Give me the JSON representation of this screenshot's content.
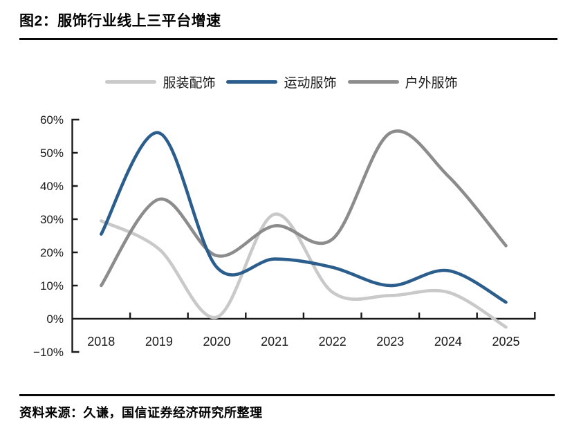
{
  "header": {
    "title": "图2：服饰行业线上三平台增速"
  },
  "footer": {
    "source": "资料来源：久谦，国信证券经济研究所整理"
  },
  "chart_data": {
    "type": "line",
    "title": "服饰行业线上三平台增速",
    "categories": [
      "2018",
      "2019",
      "2020",
      "2021",
      "2022",
      "2023",
      "2024",
      "2025"
    ],
    "series": [
      {
        "name": "服装配饰",
        "color": "#C9C9C9",
        "values": [
          29.5,
          21,
          0.5,
          31.5,
          8,
          7,
          8,
          -2.5
        ]
      },
      {
        "name": "运动服饰",
        "color": "#2B5E8C",
        "values": [
          25.5,
          56,
          15.5,
          18,
          15.5,
          10,
          14.5,
          5
        ]
      },
      {
        "name": "户外服饰",
        "color": "#8C8C8C",
        "values": [
          10,
          36,
          19,
          28,
          24,
          56,
          43,
          22
        ]
      }
    ],
    "ylim": [
      -10,
      60
    ],
    "yticks": [
      60,
      50,
      40,
      30,
      20,
      10,
      0,
      -10
    ],
    "ytick_labels": [
      "60%",
      "50%",
      "40%",
      "30%",
      "20%",
      "10%",
      "0%",
      "−10%"
    ],
    "legend_position": "top",
    "grid": false,
    "axis_color": "#1A1A1A",
    "tick_label_color": "#1A1A1A"
  }
}
